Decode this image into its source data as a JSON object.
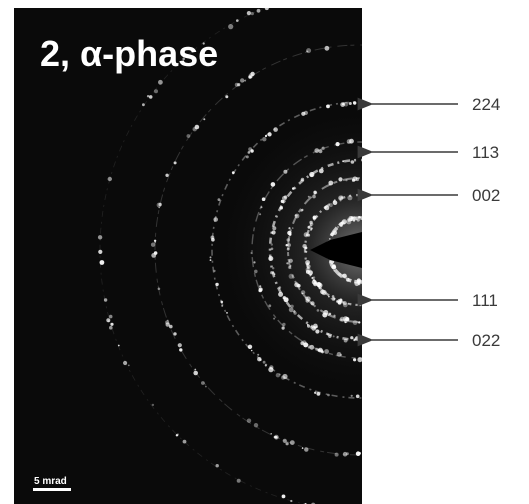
{
  "figure": {
    "title": "2, α-phase",
    "scale_bar_label": "5 mrad",
    "reflections": [
      {
        "label": "224"
      },
      {
        "label": "113"
      },
      {
        "label": "002"
      },
      {
        "label": "111"
      },
      {
        "label": "022"
      }
    ]
  },
  "colors": {
    "background": "#0a0a0a",
    "rings": "#d8d8d8",
    "annotation": "#3a3a3a"
  }
}
